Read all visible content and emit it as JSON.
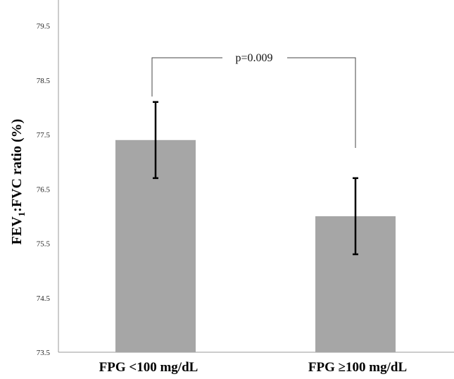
{
  "chart_data": {
    "type": "bar",
    "categories": [
      "FPG <100 mg/dL",
      "FPG ≥100 mg/dL"
    ],
    "values": [
      77.4,
      76.0
    ],
    "error_low": [
      76.7,
      75.3
    ],
    "error_high": [
      78.1,
      76.7
    ],
    "ylabel_main": "FEV",
    "ylabel_sub": "1",
    "ylabel_rest": ":FVC ratio (%)",
    "ylim": [
      73.5,
      80.0
    ],
    "yticks": [
      "73.5",
      "74.5",
      "75.5",
      "76.5",
      "77.5",
      "78.5",
      "79.5"
    ],
    "annotation": "p=0.009",
    "bar_color": "#a6a6a6",
    "grid": false
  }
}
